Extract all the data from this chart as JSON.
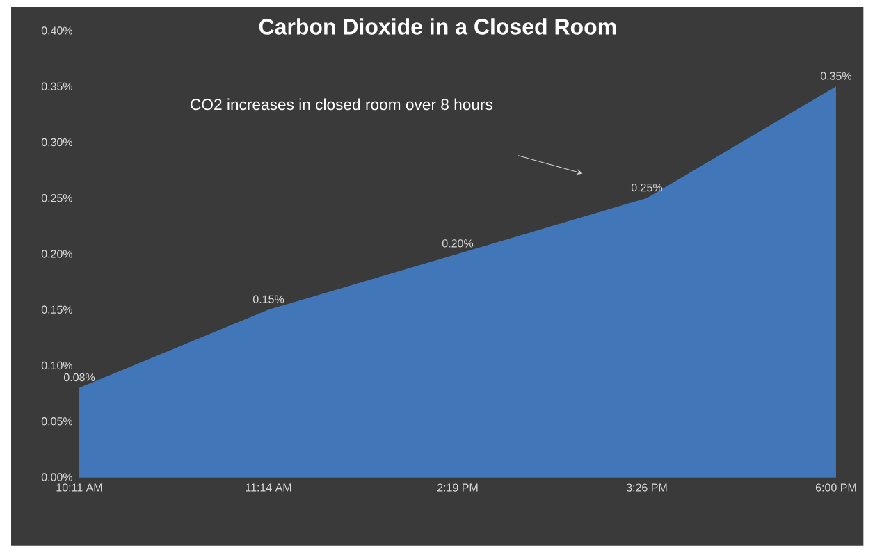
{
  "chart_data": {
    "type": "area",
    "title": "Carbon Dioxide in a Closed Room",
    "categories": [
      "10:11 AM",
      "11:14 AM",
      "2:19 PM",
      "3:26 PM",
      "6:00 PM"
    ],
    "values": [
      0.08,
      0.15,
      0.2,
      0.25,
      0.35
    ],
    "value_labels": [
      "0.08%",
      "0.15%",
      "0.20%",
      "0.25%",
      "0.35%"
    ],
    "color": "#4177b8",
    "ylim": [
      0,
      0.4
    ],
    "yticks": [
      {
        "value": 0,
        "label": "0.00%"
      },
      {
        "value": 0.05,
        "label": "0.05%"
      },
      {
        "value": 0.1,
        "label": "0.10%"
      },
      {
        "value": 0.15,
        "label": "0.15%"
      },
      {
        "value": 0.2,
        "label": "0.20%"
      },
      {
        "value": 0.25,
        "label": "0.25%"
      },
      {
        "value": 0.3,
        "label": "0.30%"
      },
      {
        "value": 0.35,
        "label": "0.35%"
      },
      {
        "value": 0.4,
        "label": "0.40%"
      }
    ],
    "annotations": [
      "CO2 increases in closed room over 8 hours"
    ]
  }
}
